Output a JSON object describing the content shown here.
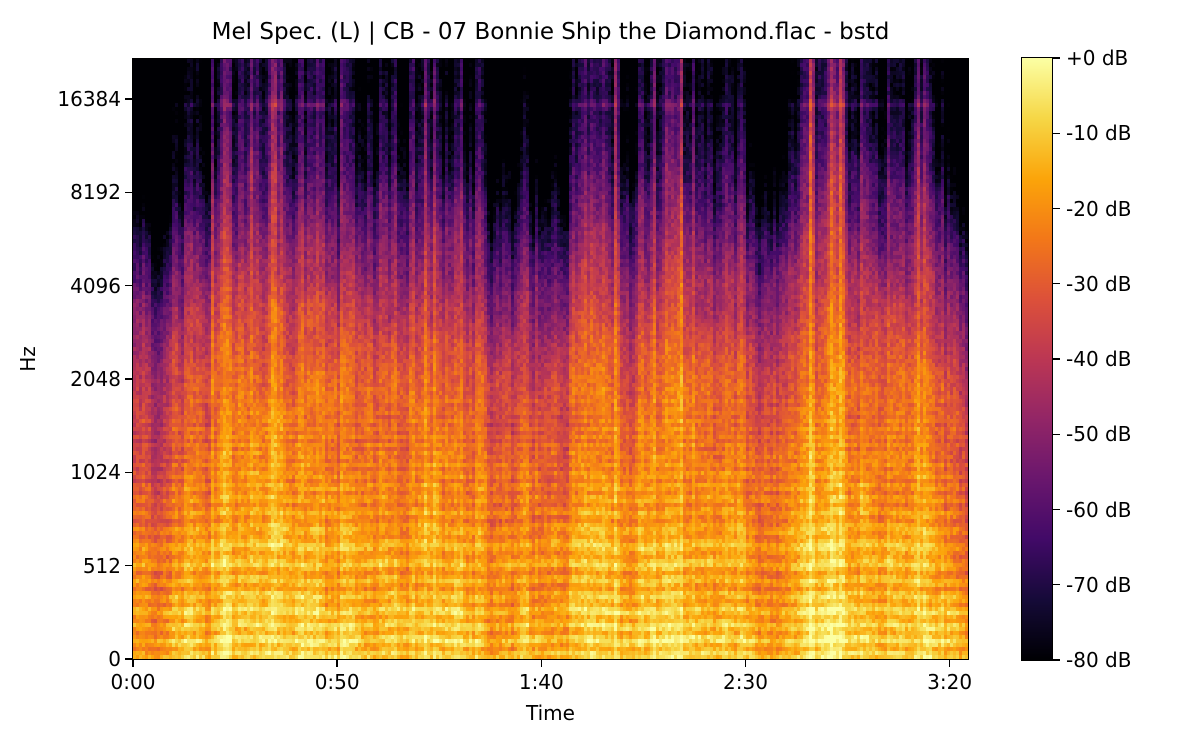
{
  "figure": {
    "title": "Mel Spec. (L) | CB - 07 Bonnie Ship the Diamond.flac - bstd"
  },
  "axes": {
    "x": {
      "label": "Time",
      "ticks": [
        {
          "label": "0:00",
          "seconds": 0
        },
        {
          "label": "0:50",
          "seconds": 50
        },
        {
          "label": "1:40",
          "seconds": 100
        },
        {
          "label": "2:30",
          "seconds": 150
        },
        {
          "label": "3:20",
          "seconds": 200
        }
      ],
      "range_seconds": [
        0,
        204.5
      ]
    },
    "y": {
      "label": "Hz",
      "ticks": [
        {
          "label": "16384",
          "hz": 16384
        },
        {
          "label": "8192",
          "hz": 8192
        },
        {
          "label": "4096",
          "hz": 4096
        },
        {
          "label": "2048",
          "hz": 2048
        },
        {
          "label": "1024",
          "hz": 1024
        },
        {
          "label": "512",
          "hz": 512
        },
        {
          "label": "0",
          "hz": 0
        }
      ],
      "range_hz": [
        0,
        22050
      ]
    }
  },
  "colorbar": {
    "tick_labels": [
      "+0 dB",
      "-10 dB",
      "-20 dB",
      "-30 dB",
      "-40 dB",
      "-50 dB",
      "-60 dB",
      "-70 dB",
      "-80 dB"
    ],
    "min_db": -80,
    "max_db": 0,
    "colormap": "inferno"
  },
  "chart_data": {
    "type": "heatmap",
    "subtype": "mel-spectrogram",
    "title": "Mel Spec. (L) | CB - 07 Bonnie Ship the Diamond.flac - bstd",
    "xlabel": "Time",
    "ylabel": "Hz",
    "x_tick_labels": [
      "0:00",
      "0:50",
      "1:40",
      "2:30",
      "3:20"
    ],
    "x_tick_seconds": [
      0,
      50,
      100,
      150,
      200
    ],
    "x_range_seconds": [
      0,
      204.5
    ],
    "y_tick_labels": [
      "0",
      "512",
      "1024",
      "2048",
      "4096",
      "8192",
      "16384"
    ],
    "y_tick_hz": [
      0,
      512,
      1024,
      2048,
      4096,
      8192,
      16384
    ],
    "y_range_hz": [
      0,
      22050
    ],
    "value_range_db": [
      -80,
      0
    ],
    "colorbar_tick_labels": [
      "+0 dB",
      "-10 dB",
      "-20 dB",
      "-30 dB",
      "-40 dB",
      "-50 dB",
      "-60 dB",
      "-70 dB",
      "-80 dB"
    ],
    "colormap": "inferno",
    "colormap_anchors": [
      "#000004",
      "#160b39",
      "#420a68",
      "#6a176e",
      "#932667",
      "#bc3754",
      "#dd513a",
      "#f37819",
      "#fca50a",
      "#f6d746",
      "#fcffa4"
    ],
    "grid": false,
    "legend": "none",
    "content_profile_db_by_hz": [
      [
        0,
        -13
      ],
      [
        60,
        -10
      ],
      [
        150,
        -11
      ],
      [
        300,
        -15
      ],
      [
        500,
        -17
      ],
      [
        800,
        -20
      ],
      [
        1200,
        -24
      ],
      [
        2000,
        -29
      ],
      [
        3000,
        -37
      ],
      [
        4500,
        -47
      ],
      [
        6000,
        -55
      ],
      [
        8000,
        -63
      ],
      [
        10000,
        -70
      ],
      [
        13000,
        -75
      ],
      [
        16000,
        -78
      ],
      [
        22050,
        -80
      ]
    ],
    "quiet_sections_s": [
      [
        0,
        18,
        -5
      ],
      [
        4.5,
        8,
        -9
      ],
      [
        88,
        106,
        -8
      ],
      [
        150,
        162,
        -8
      ]
    ],
    "loud_sections_s": [
      [
        55,
        62,
        3
      ],
      [
        108,
        118,
        3
      ],
      [
        163,
        196,
        2.5
      ]
    ],
    "artifact_line_hz": 15700,
    "features": [
      "bright low-frequency energy below ~600 Hz for the whole track",
      "horizontal harmonic banding below ~1.5 kHz",
      "vertical note-onset stripes reaching ~8 kHz",
      "quieter passages near 0:05-0:08, 1:28-1:46 and 2:30-2:42",
      "faint horizontal artifact line near 16 kHz"
    ]
  }
}
